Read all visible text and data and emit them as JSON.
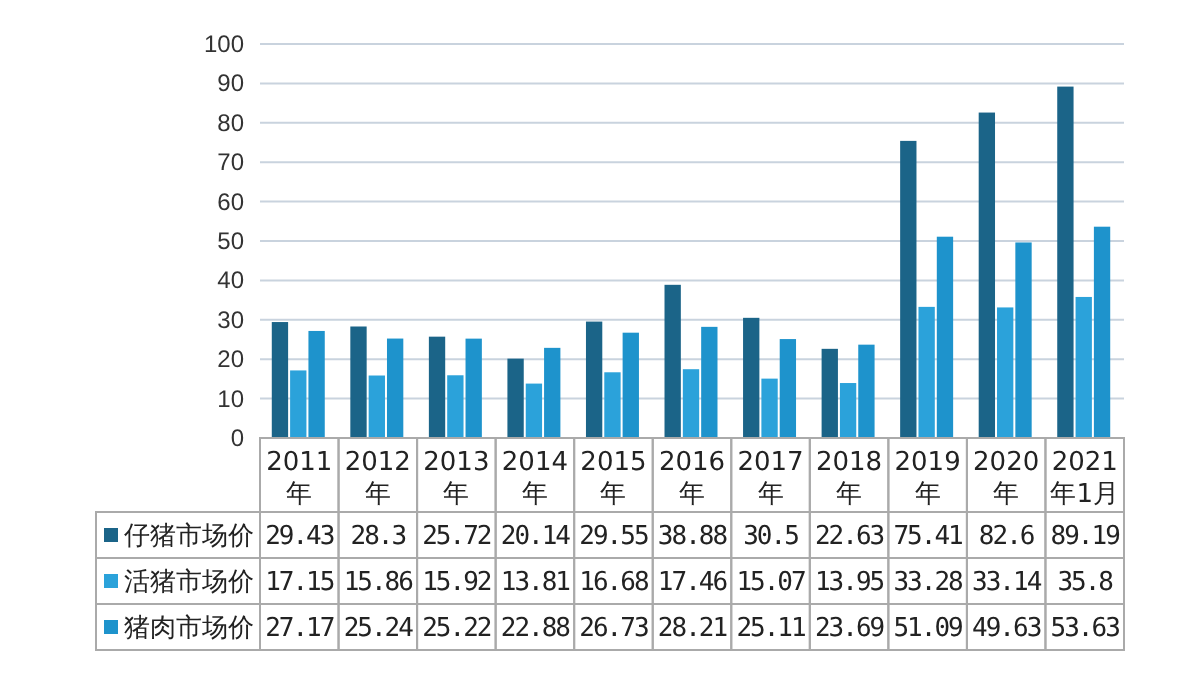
{
  "chart_data": {
    "type": "bar",
    "categories": [
      "2011年",
      "2012年",
      "2013年",
      "2014年",
      "2015年",
      "2016年",
      "2017年",
      "2018年",
      "2019年",
      "2020年",
      "2021年1月"
    ],
    "series": [
      {
        "name": "仔猪市场价",
        "color": "#1b6488",
        "values": [
          29.43,
          28.3,
          25.72,
          20.14,
          29.55,
          38.88,
          30.5,
          22.63,
          75.41,
          82.6,
          89.19
        ]
      },
      {
        "name": "活猪市场价",
        "color": "#2ba2da",
        "values": [
          17.15,
          15.86,
          15.92,
          13.81,
          16.68,
          17.46,
          15.07,
          13.95,
          33.28,
          33.14,
          35.8
        ]
      },
      {
        "name": "猪肉市场价",
        "color": "#1e93cc",
        "values": [
          27.17,
          25.24,
          25.22,
          22.88,
          26.73,
          28.21,
          25.11,
          23.69,
          51.09,
          49.63,
          53.63
        ]
      }
    ],
    "ylim": [
      0,
      100
    ],
    "yticks": [
      0,
      10,
      20,
      30,
      40,
      50,
      60,
      70,
      80,
      90,
      100
    ],
    "grid": "y",
    "data_labels": true,
    "legend": "bottom"
  }
}
